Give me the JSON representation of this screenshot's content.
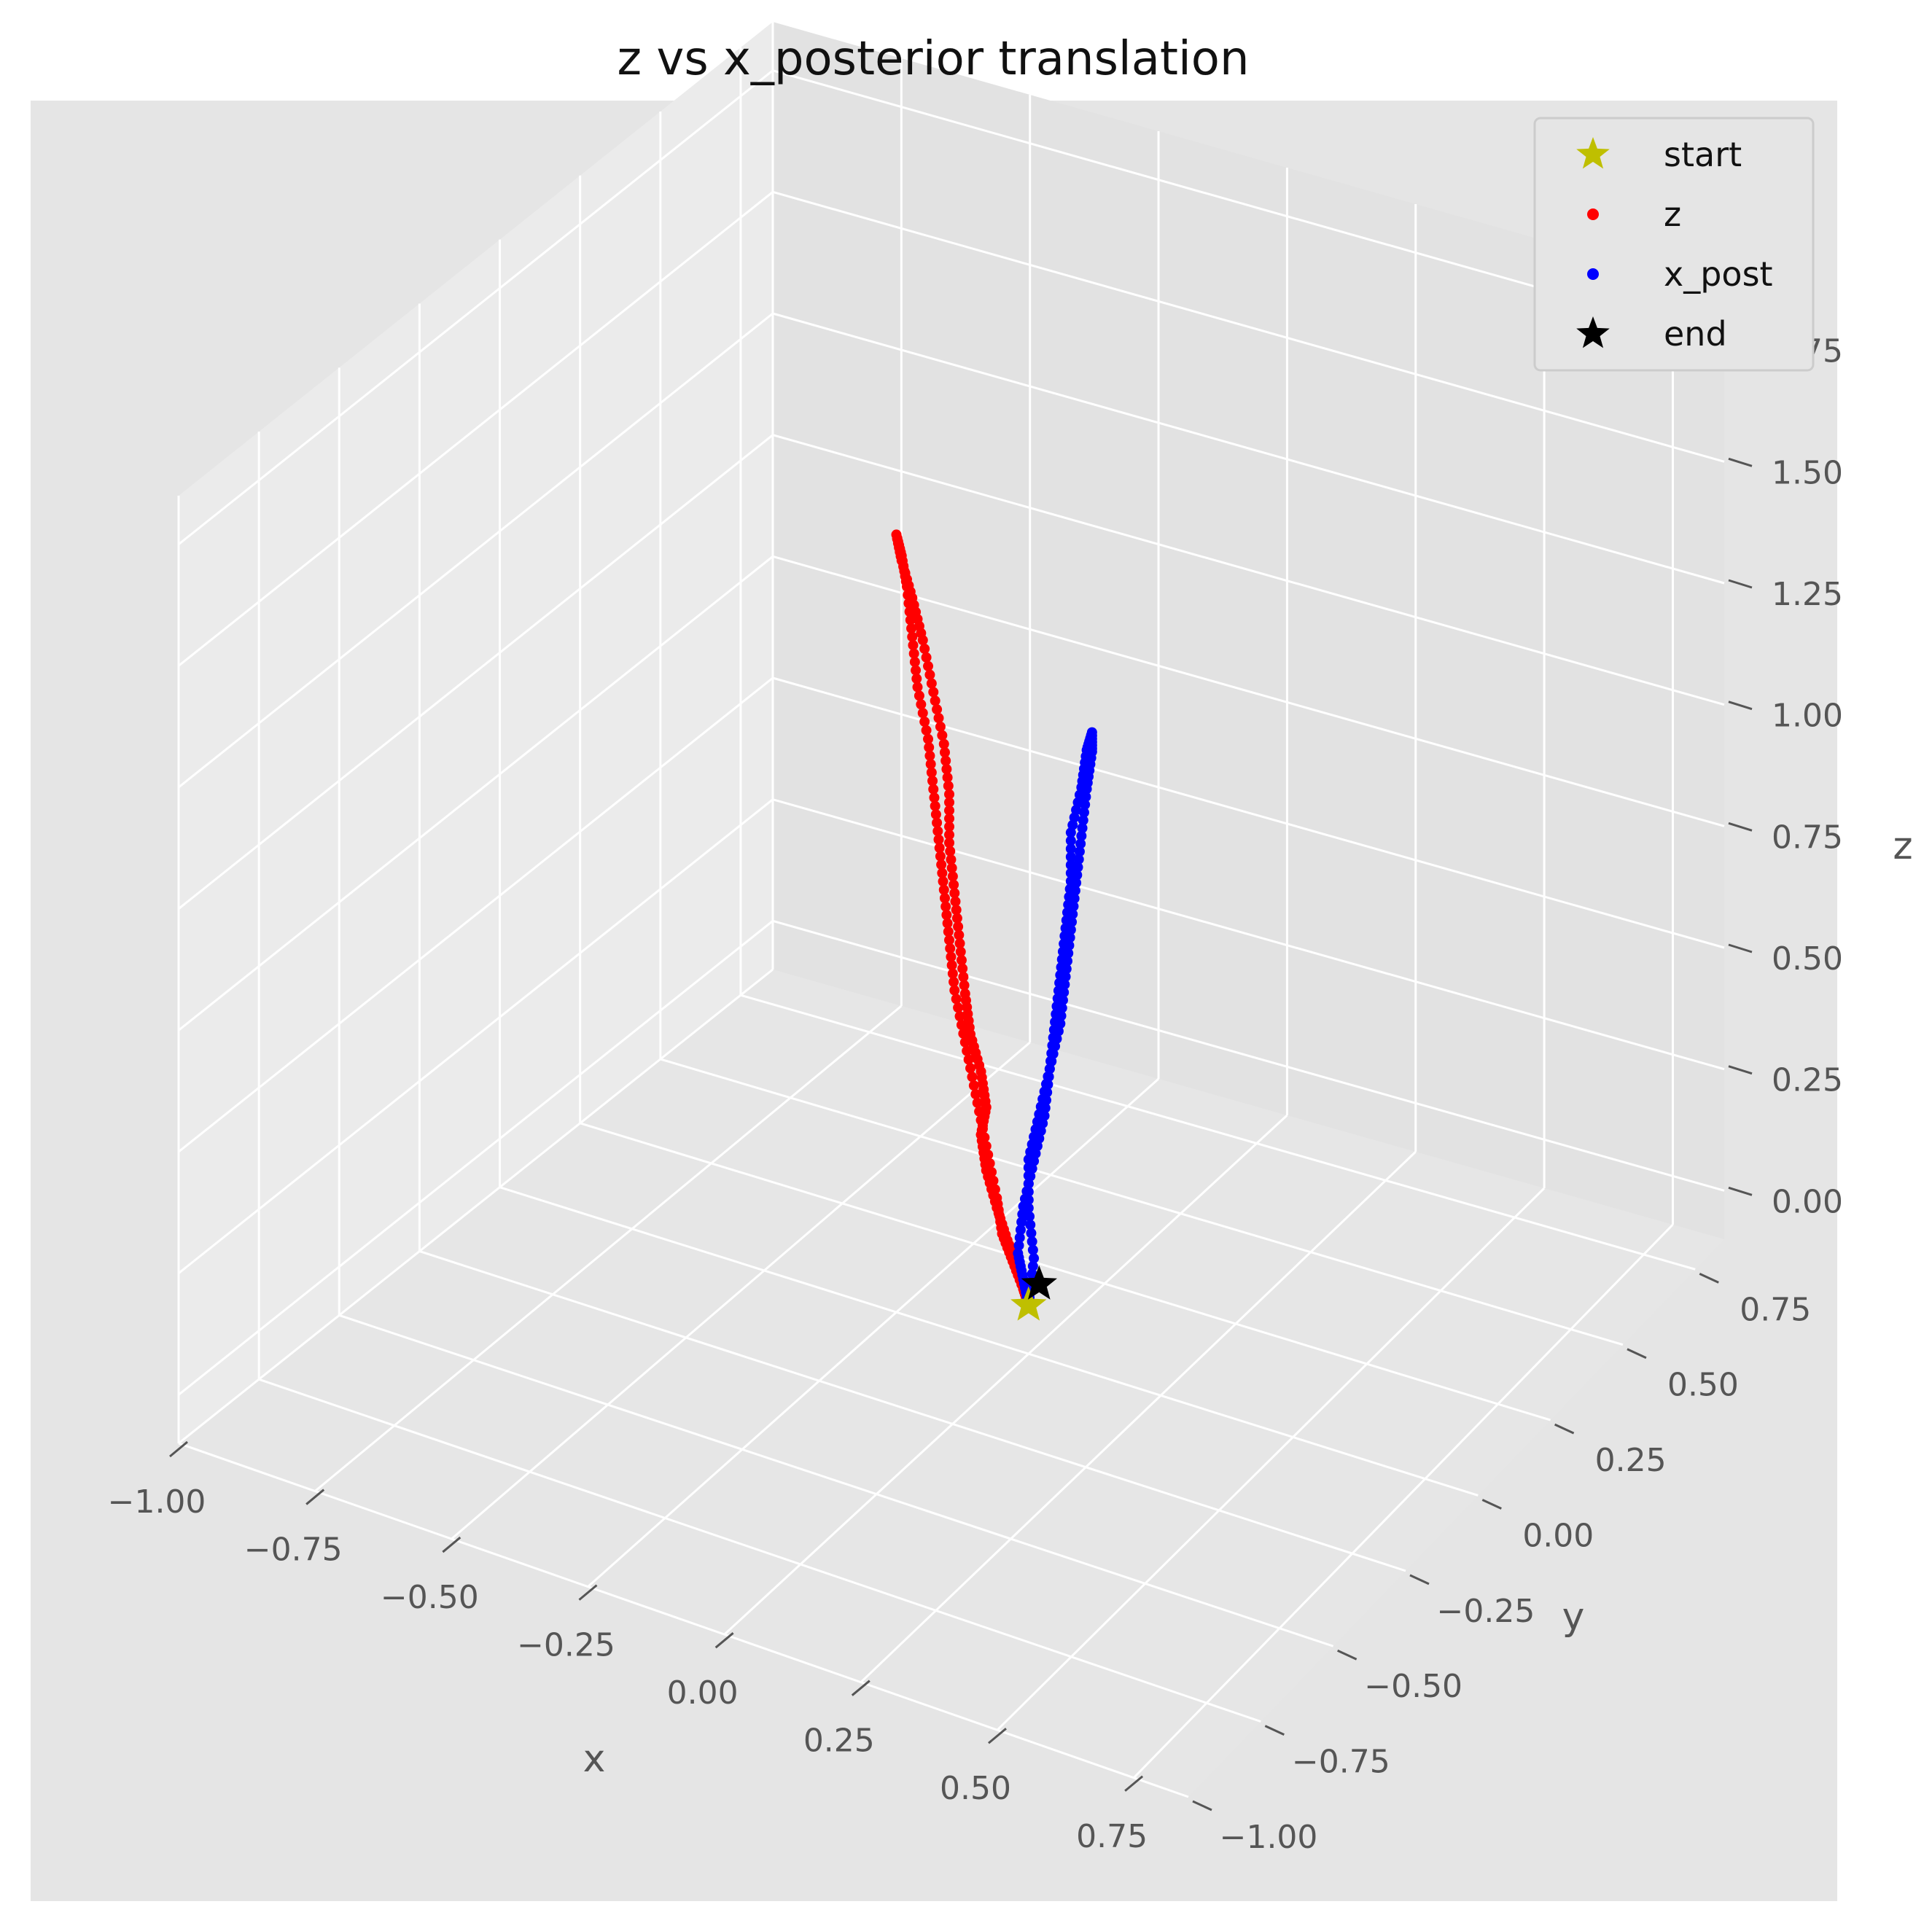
{
  "chart_data": {
    "type": "scatter",
    "projection": "3d",
    "title": "z vs x_posterior translation",
    "xlabel": "x",
    "ylabel": "y",
    "zlabel": "z",
    "xlim": [
      -1.0,
      0.85
    ],
    "ylim": [
      -1.0,
      0.85
    ],
    "zlim": [
      -0.1,
      1.85
    ],
    "xticks": [
      -1.0,
      -0.75,
      -0.5,
      -0.25,
      0.0,
      0.25,
      0.5,
      0.75
    ],
    "yticks": [
      -1.0,
      -0.75,
      -0.5,
      -0.25,
      0.0,
      0.25,
      0.5,
      0.75
    ],
    "zticks": [
      0.0,
      0.25,
      0.5,
      0.75,
      1.0,
      1.25,
      1.5,
      1.75
    ],
    "xtick_labels": [
      "−1.00",
      "−0.75",
      "−0.50",
      "−0.25",
      "0.00",
      "0.25",
      "0.50",
      "0.75"
    ],
    "ytick_labels": [
      "−1.00",
      "−0.75",
      "−0.50",
      "−0.25",
      "0.00",
      "0.25",
      "0.50",
      "0.75"
    ],
    "ztick_labels": [
      "0.00",
      "0.25",
      "0.50",
      "0.75",
      "1.00",
      "1.25",
      "1.50",
      "1.75"
    ],
    "grid": true,
    "legend_position": "top-right",
    "legend": [
      "start",
      "z",
      "x_post",
      "end"
    ],
    "colors": {
      "start": "#bfbf00",
      "z": "#ff0000",
      "x_post": "#0000ff",
      "end": "#000000",
      "pane": "#e5e5e5"
    },
    "series": [
      {
        "name": "z",
        "marker": "dot",
        "points": [
          {
            "x": 0.0,
            "y": 0.0,
            "z": 0.0
          },
          {
            "x": -0.01,
            "y": 0.0,
            "z": 0.03
          },
          {
            "x": -0.02,
            "y": 0.0,
            "z": 0.07
          },
          {
            "x": -0.04,
            "y": 0.0,
            "z": 0.12
          },
          {
            "x": -0.06,
            "y": 0.0,
            "z": 0.18
          },
          {
            "x": -0.08,
            "y": 0.0,
            "z": 0.25
          },
          {
            "x": -0.09,
            "y": 0.0,
            "z": 0.32
          },
          {
            "x": -0.08,
            "y": 0.0,
            "z": 0.38
          },
          {
            "x": -0.09,
            "y": 0.0,
            "z": 0.45
          },
          {
            "x": -0.11,
            "y": 0.0,
            "z": 0.52
          },
          {
            "x": -0.12,
            "y": 0.0,
            "z": 0.6
          },
          {
            "x": -0.13,
            "y": 0.0,
            "z": 0.7
          },
          {
            "x": -0.14,
            "y": 0.0,
            "z": 0.8
          },
          {
            "x": -0.15,
            "y": 0.0,
            "z": 0.9
          },
          {
            "x": -0.15,
            "y": 0.0,
            "z": 1.0
          },
          {
            "x": -0.16,
            "y": 0.0,
            "z": 1.1
          },
          {
            "x": -0.18,
            "y": 0.0,
            "z": 1.2
          },
          {
            "x": -0.2,
            "y": 0.0,
            "z": 1.3
          },
          {
            "x": -0.22,
            "y": 0.0,
            "z": 1.38
          },
          {
            "x": -0.24,
            "y": 0.0,
            "z": 1.45
          },
          {
            "x": -0.25,
            "y": 0.0,
            "z": 1.5
          },
          {
            "x": -0.24,
            "y": 0.0,
            "z": 1.46
          },
          {
            "x": -0.23,
            "y": 0.0,
            "z": 1.4
          },
          {
            "x": -0.22,
            "y": 0.0,
            "z": 1.3
          },
          {
            "x": -0.21,
            "y": 0.0,
            "z": 1.2
          },
          {
            "x": -0.19,
            "y": 0.0,
            "z": 1.1
          },
          {
            "x": -0.18,
            "y": 0.0,
            "z": 1.0
          },
          {
            "x": -0.17,
            "y": 0.0,
            "z": 0.9
          },
          {
            "x": -0.16,
            "y": 0.0,
            "z": 0.8
          },
          {
            "x": -0.15,
            "y": 0.0,
            "z": 0.7
          },
          {
            "x": -0.14,
            "y": 0.0,
            "z": 0.6
          },
          {
            "x": -0.12,
            "y": 0.0,
            "z": 0.5
          },
          {
            "x": -0.1,
            "y": 0.0,
            "z": 0.4
          },
          {
            "x": -0.08,
            "y": 0.0,
            "z": 0.3
          },
          {
            "x": -0.06,
            "y": 0.0,
            "z": 0.2
          },
          {
            "x": -0.05,
            "y": 0.0,
            "z": 0.13
          },
          {
            "x": -0.03,
            "y": 0.0,
            "z": 0.08
          },
          {
            "x": -0.01,
            "y": 0.0,
            "z": 0.03
          },
          {
            "x": 0.0,
            "y": 0.0,
            "z": 0.0
          }
        ]
      },
      {
        "name": "x_post",
        "marker": "dot",
        "points": [
          {
            "x": 0.0,
            "y": 0.0,
            "z": 0.0
          },
          {
            "x": 0.01,
            "y": 0.0,
            "z": 0.1
          },
          {
            "x": 0.0,
            "y": 0.0,
            "z": 0.2
          },
          {
            "x": 0.0,
            "y": 0.0,
            "z": 0.3
          },
          {
            "x": 0.02,
            "y": 0.0,
            "z": 0.4
          },
          {
            "x": 0.04,
            "y": 0.0,
            "z": 0.5
          },
          {
            "x": 0.06,
            "y": 0.0,
            "z": 0.6
          },
          {
            "x": 0.07,
            "y": 0.0,
            "z": 0.7
          },
          {
            "x": 0.08,
            "y": 0.0,
            "z": 0.8
          },
          {
            "x": 0.09,
            "y": 0.0,
            "z": 0.9
          },
          {
            "x": 0.1,
            "y": 0.0,
            "z": 1.0
          },
          {
            "x": 0.11,
            "y": 0.0,
            "z": 1.1
          },
          {
            "x": 0.12,
            "y": 0.0,
            "z": 1.18
          },
          {
            "x": 0.12,
            "y": 0.0,
            "z": 1.22
          },
          {
            "x": 0.11,
            "y": 0.0,
            "z": 1.18
          },
          {
            "x": 0.1,
            "y": 0.0,
            "z": 1.1
          },
          {
            "x": 0.08,
            "y": 0.0,
            "z": 1.0
          },
          {
            "x": 0.08,
            "y": 0.0,
            "z": 0.9
          },
          {
            "x": 0.07,
            "y": 0.0,
            "z": 0.8
          },
          {
            "x": 0.06,
            "y": 0.0,
            "z": 0.7
          },
          {
            "x": 0.05,
            "y": 0.0,
            "z": 0.6
          },
          {
            "x": 0.04,
            "y": 0.0,
            "z": 0.5
          },
          {
            "x": 0.03,
            "y": 0.0,
            "z": 0.4
          },
          {
            "x": 0.01,
            "y": 0.0,
            "z": 0.3
          },
          {
            "x": -0.01,
            "y": 0.0,
            "z": 0.2
          },
          {
            "x": -0.02,
            "y": 0.0,
            "z": 0.1
          },
          {
            "x": -0.01,
            "y": 0.0,
            "z": 0.05
          },
          {
            "x": 0.0,
            "y": 0.0,
            "z": 0.0
          }
        ]
      },
      {
        "name": "start",
        "marker": "star",
        "points": [
          {
            "x": 0.0,
            "y": 0.0,
            "z": 0.0
          }
        ]
      },
      {
        "name": "end",
        "marker": "star",
        "points": [
          {
            "x": 0.02,
            "y": 0.0,
            "z": 0.05
          }
        ]
      }
    ]
  }
}
